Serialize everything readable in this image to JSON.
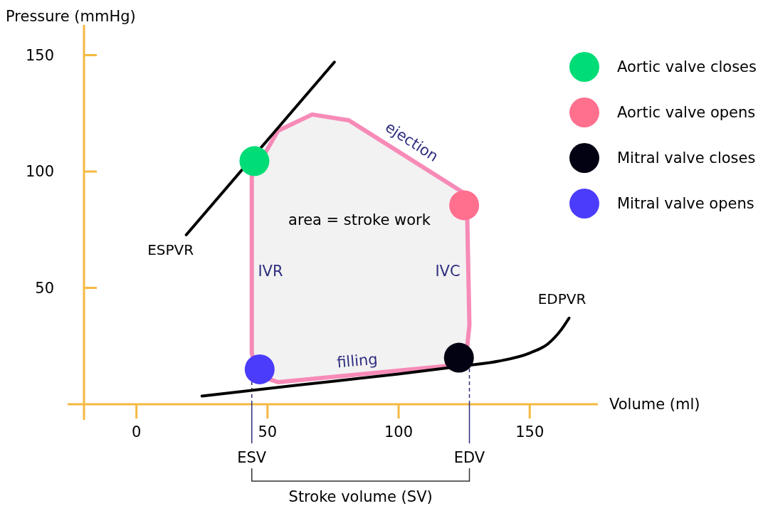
{
  "chart_data": {
    "type": "line",
    "xlabel": "Volume (ml)",
    "ylabel": "Pressure (mmHg)",
    "xlim": [
      -20,
      176
    ],
    "ylim": [
      0,
      163
    ],
    "xticks": [
      0,
      50,
      100,
      150
    ],
    "yticks": [
      50,
      100,
      150
    ],
    "grid": false,
    "legend": "right",
    "series": [
      {
        "type": "area",
        "color": "#f78bb8",
        "marker": "none",
        "x": [
          44,
          44,
          54,
          67,
          81,
          126,
          127,
          126,
          119,
          54,
          46,
          44
        ],
        "values": [
          22,
          98,
          117.5,
          124.5,
          122,
          90,
          34,
          23,
          16.5,
          9.5,
          12.5,
          22
        ]
      },
      {
        "name": "ESPVR",
        "color": "#000000",
        "marker": "none",
        "x": [
          19,
          75.5
        ],
        "values": [
          72.8,
          147
        ]
      },
      {
        "name": "EDPVR",
        "color": "#000000",
        "marker": "none",
        "x": [
          25,
          60,
          100,
          125,
          138,
          150,
          157,
          162,
          165
        ],
        "values": [
          3.5,
          8,
          13,
          16.5,
          18.5,
          22,
          26,
          32,
          37
        ]
      },
      {
        "type": "scatter",
        "name": "Aortic valve closes",
        "color": "#00dd77",
        "marker": "circle",
        "x": [
          45
        ],
        "values": [
          104.5
        ]
      },
      {
        "type": "scatter",
        "name": "Aortic valve opens",
        "color": "#ff6f8e",
        "marker": "circle",
        "x": [
          125
        ],
        "values": [
          85.5
        ]
      },
      {
        "type": "scatter",
        "name": "Mitral valve closes",
        "color": "#020212",
        "marker": "circle",
        "x": [
          123
        ],
        "values": [
          20
        ]
      },
      {
        "type": "scatter",
        "name": "Mitral valve opens",
        "color": "#4b3cfc",
        "marker": "circle",
        "x": [
          47
        ],
        "values": [
          15
        ]
      }
    ],
    "ref_lines": [
      {
        "axis": "x",
        "value": 44,
        "label": "ESV",
        "color": "#2e2e80",
        "line_style": "dashed"
      },
      {
        "axis": "x",
        "value": 127,
        "label": "EDV",
        "color": "#2e2e80",
        "line_style": "dashed"
      }
    ],
    "annotations": [
      "ejection",
      "area = stroke work",
      "IVR",
      "IVC",
      "filling",
      "Stroke volume (SV)"
    ]
  }
}
